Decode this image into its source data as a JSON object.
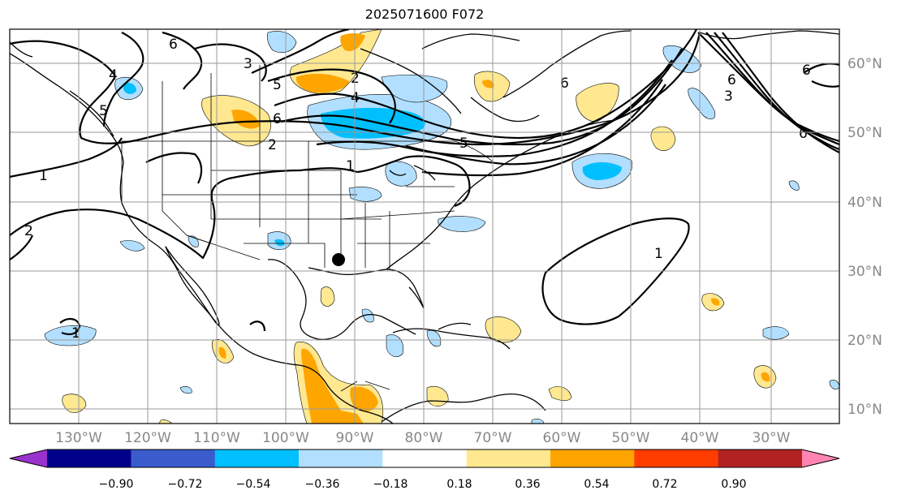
{
  "title": "2025071600 F072",
  "map": {
    "lat_labels": [
      "60°N",
      "50°N",
      "40°N",
      "30°N",
      "20°N",
      "10°N"
    ],
    "lon_labels": [
      "130°W",
      "120°W",
      "110°W",
      "100°W",
      "90°W",
      "80°W",
      "70°W",
      "60°W",
      "50°W",
      "40°W",
      "30°W"
    ],
    "contour_labels": [
      "1",
      "1",
      "1",
      "1",
      "2",
      "2",
      "2",
      "3",
      "3",
      "4",
      "4",
      "5",
      "5",
      "5",
      "6",
      "6",
      "6",
      "6",
      "6",
      "6"
    ],
    "colors": {
      "grid": "#9a9a9a",
      "label": "#888888"
    }
  },
  "colorbar": {
    "ticks": [
      "−0.90",
      "−0.72",
      "−0.54",
      "−0.36",
      "−0.18",
      "0.18",
      "0.36",
      "0.54",
      "0.72",
      "0.90"
    ],
    "colors": [
      "#9932cc",
      "#00008b",
      "#3a5bcc",
      "#00bfff",
      "#b2dfff",
      "#ffffff",
      "#ffe890",
      "#ffa500",
      "#ff3d00",
      "#b22222",
      "#ff85b0"
    ]
  }
}
